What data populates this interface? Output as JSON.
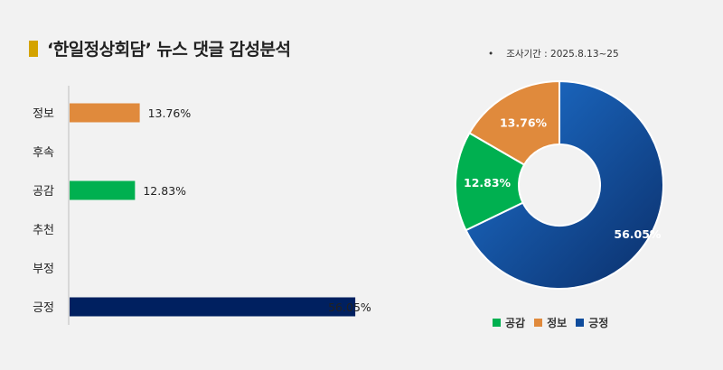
{
  "title": "‘한일정상회담’ 뉴스 댓글 감성분석",
  "period": "조사기간 : 2025.8.13~25",
  "period_bullet": "•",
  "colors": {
    "title_marker": "#d4a300",
    "정보": "#e08a3c",
    "공감": "#00b050",
    "긍정_bar": "#002060",
    "긍정_donut": "#0f4c9c"
  },
  "chart_data": [
    {
      "type": "bar",
      "orientation": "horizontal",
      "categories": [
        "정보",
        "후속",
        "공감",
        "추천",
        "부정",
        "긍정"
      ],
      "values": [
        13.76,
        null,
        12.83,
        null,
        null,
        56.05
      ],
      "value_labels": [
        "13.76%",
        "",
        "12.83%",
        "",
        "",
        "56.05%"
      ],
      "bar_colors": [
        "#e08a3c",
        null,
        "#00b050",
        null,
        null,
        "#002060"
      ],
      "xlim": [
        0,
        100
      ],
      "grid": false
    },
    {
      "type": "pie",
      "donut": true,
      "labels": [
        "긍정",
        "공감",
        "정보"
      ],
      "values": [
        56.05,
        12.83,
        13.76
      ],
      "value_labels": [
        "56.05%",
        "12.83%",
        "13.76%"
      ],
      "colors": [
        "#0f4c9c",
        "#00b050",
        "#e08a3c"
      ],
      "legend": [
        "공감",
        "정보",
        "긍정"
      ],
      "legend_position": "bottom"
    }
  ]
}
